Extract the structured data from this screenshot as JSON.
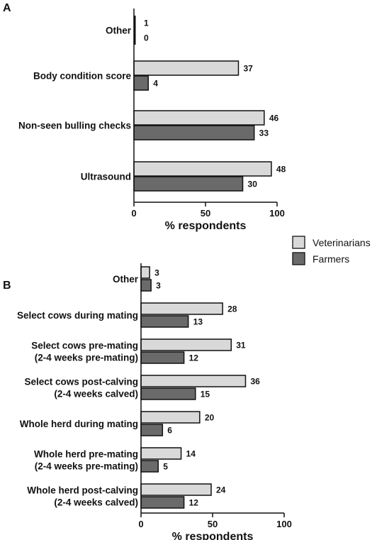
{
  "colors": {
    "veterinarians": "#d9d9d9",
    "farmers": "#6a6a6a",
    "stroke": "#111111"
  },
  "legend": {
    "veterinarians": "Veterinarians",
    "farmers": "Farmers",
    "placement": "right-middle"
  },
  "chart_data": [
    {
      "type": "bar",
      "orientation": "horizontal",
      "panel_label": "A",
      "categories": [
        "Other",
        "Body condition score",
        "Non-seen bulling checks",
        "Ultrasound"
      ],
      "series": [
        {
          "name": "Veterinarians",
          "values": [
            1,
            37,
            46,
            48
          ]
        },
        {
          "name": "Farmers",
          "values": [
            0,
            4,
            33,
            30
          ]
        }
      ],
      "bar_lengths_percent": {
        "Veterinarians": [
          1,
          73,
          91,
          96
        ],
        "Farmers": [
          0,
          10,
          84,
          76
        ]
      },
      "value_labels": {
        "Veterinarians": [
          "1",
          "37",
          "46",
          "48"
        ],
        "Farmers": [
          "0",
          "4",
          "33",
          "30"
        ]
      },
      "xlabel": "% respondents",
      "xlim": [
        0,
        100
      ],
      "xticks": [
        "0",
        "50",
        "100"
      ],
      "grid": false
    },
    {
      "type": "bar",
      "orientation": "horizontal",
      "panel_label": "B",
      "categories": [
        [
          "Other"
        ],
        [
          "Select cows during mating"
        ],
        [
          "Select cows pre-mating",
          "(2-4 weeks pre-mating)"
        ],
        [
          "Select cows post-calving",
          "(2-4 weeks calved)"
        ],
        [
          "Whole herd during mating"
        ],
        [
          "Whole herd pre-mating",
          "(2-4 weeks pre-mating)"
        ],
        [
          "Whole herd post-calving",
          "(2-4 weeks calved)"
        ]
      ],
      "series": [
        {
          "name": "Veterinarians",
          "values": [
            3,
            28,
            31,
            36,
            20,
            14,
            24
          ]
        },
        {
          "name": "Farmers",
          "values": [
            3,
            13,
            12,
            15,
            6,
            5,
            12
          ]
        }
      ],
      "bar_lengths_percent": {
        "Veterinarians": [
          6,
          57,
          63,
          73,
          41,
          28,
          49
        ],
        "Farmers": [
          7,
          33,
          30,
          38,
          15,
          12,
          30
        ]
      },
      "value_labels": {
        "Veterinarians": [
          "3",
          "28",
          "31",
          "36",
          "20",
          "14",
          "24"
        ],
        "Farmers": [
          "3",
          "13",
          "12",
          "15",
          "6",
          "5",
          "12"
        ]
      },
      "xlabel": "% respondents",
      "xlim": [
        0,
        100
      ],
      "xticks": [
        "0",
        "50",
        "100"
      ],
      "grid": false
    }
  ]
}
